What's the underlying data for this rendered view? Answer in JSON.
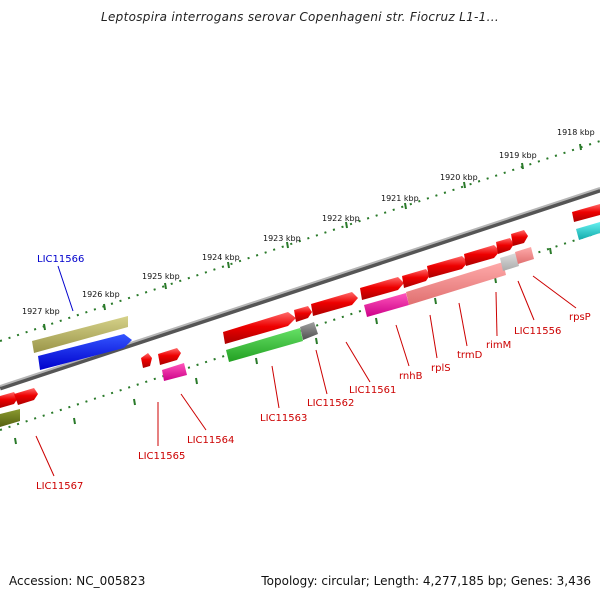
{
  "title": "Leptospira interrogans serovar Copenhageni str. Fiocruz L1-1...",
  "footer": {
    "accession": "Accession: NC_005823",
    "summary": "Topology: circular; Length: 4,277,185 bp; Genes: 3,436"
  },
  "scale_labels": [
    "1918 kbp",
    "1919 kbp",
    "1920 kbp",
    "1921 kbp",
    "1922 kbp",
    "1923 kbp",
    "1924 kbp",
    "1925 kbp",
    "1926 kbp",
    "1927 kbp"
  ],
  "gene_labels": {
    "LIC11566": "LIC11566",
    "LIC11567": "LIC11567",
    "LIC11565": "LIC11565",
    "LIC11564": "LIC11564",
    "LIC11563": "LIC11563",
    "LIC11562": "LIC11562",
    "LIC11561": "LIC11561",
    "rnhB": "rnhB",
    "rplS": "rplS",
    "trmD": "trmD",
    "rimM": "rimM",
    "LIC11556": "LIC11556",
    "rpsP": "rpsP"
  },
  "colors": {
    "label_red": "#cc0000",
    "label_blue": "#0000cc",
    "gene_red": "#ee1111",
    "backbone": "#888888",
    "tick_green": "#2a7a2a"
  }
}
